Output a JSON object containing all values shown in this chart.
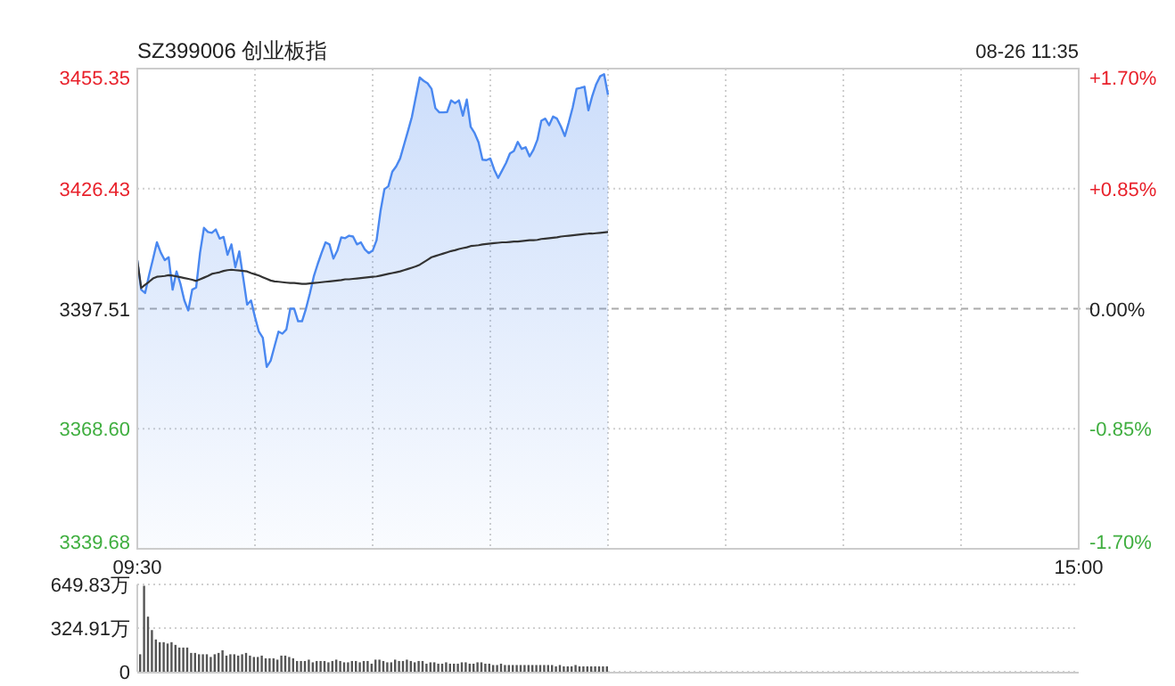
{
  "chart_data": [
    {
      "type": "line",
      "title": "SZ399006 创业板指",
      "subtitle": "08-26 11:35",
      "categories": [
        "09:30",
        null,
        null,
        null,
        null,
        null,
        null,
        null,
        null,
        null,
        null,
        null,
        null,
        null,
        null,
        null,
        null,
        null,
        null,
        null,
        null,
        null,
        null,
        null,
        null,
        null,
        null,
        null,
        null,
        null,
        null,
        null,
        null,
        null,
        null,
        null,
        null,
        null,
        null,
        null,
        null,
        null,
        null,
        null,
        null,
        null,
        null,
        null,
        null,
        null,
        null,
        null,
        null,
        null,
        null,
        null,
        null,
        null,
        null,
        null,
        null,
        null,
        null,
        null,
        null,
        null,
        null,
        null,
        null,
        null,
        null,
        null,
        null,
        null,
        null,
        null,
        null,
        null,
        null,
        null,
        null,
        null,
        null,
        null,
        null,
        null,
        null,
        null,
        null,
        null,
        null,
        null,
        null,
        null,
        null,
        null,
        null,
        null,
        null,
        null,
        null,
        null,
        null,
        null,
        null,
        null,
        null,
        null,
        null,
        null,
        null,
        null,
        null,
        null,
        null,
        null,
        null,
        null,
        null,
        null,
        null,
        null,
        null,
        null,
        null,
        null,
        null,
        null,
        null,
        null,
        null,
        null,
        null,
        null,
        null,
        null,
        null,
        null,
        null,
        null,
        null,
        null,
        null,
        null,
        null,
        null,
        null,
        null,
        null,
        null,
        null,
        null,
        null,
        null,
        null,
        null,
        null,
        null,
        null,
        null,
        null,
        null,
        null,
        null,
        null,
        null,
        null,
        null,
        null,
        null,
        null,
        null,
        null,
        null,
        null,
        null,
        null,
        null,
        null,
        null,
        null,
        null,
        null,
        null,
        null,
        null,
        null,
        null,
        null,
        null,
        null,
        null,
        null,
        null,
        null,
        null,
        null,
        null,
        null,
        null,
        null,
        null,
        null,
        null,
        null,
        null,
        null,
        null,
        null,
        null,
        null,
        null,
        null,
        null,
        null,
        null,
        null,
        null,
        null,
        null,
        null,
        null,
        null,
        null,
        null,
        null,
        null,
        null,
        null,
        null,
        null,
        null,
        null,
        null,
        null,
        null,
        null,
        null,
        null,
        null,
        "15:00"
      ],
      "ylim": [
        3339.68,
        3455.35
      ],
      "yticks": [
        3339.68,
        {
          "value": 3368.6,
          "label": "3368.60"
        },
        3397.51,
        3426.43,
        3455.35
      ],
      "y2lim": [
        -1.7,
        1.7
      ],
      "y2ticks": [
        {
          "value": -1.7,
          "label": "-1.70%"
        },
        {
          "value": -0.85,
          "label": "-0.85%"
        },
        {
          "value": 0,
          "label": "0.00%"
        },
        {
          "value": 0.85,
          "label": "+0.85%"
        },
        {
          "value": 1.7,
          "label": "+1.70%"
        }
      ],
      "grid": true,
      "ref_lines": [
        {
          "axis": "y",
          "value": 3397.51,
          "line_style": "dashed"
        }
      ],
      "series": [
        {
          "type": "area",
          "color": "#4a88f0",
          "values": [
            3409.2,
            3402.1,
            3401.3,
            3405.6,
            3409.5,
            3413.5,
            3411.0,
            3409.2,
            3409.9,
            3402.1,
            3406.5,
            3403.5,
            3399.5,
            3397.1,
            3402.1,
            3402.6,
            3411.0,
            3417.0,
            3416.0,
            3415.8,
            3416.6,
            3414.4,
            3414.8,
            3410.5,
            3413.0,
            3407.5,
            3411.3,
            3405.0,
            3398.5,
            3399.5,
            3395.5,
            3392.0,
            3390.5,
            3383.5,
            3385.0,
            3388.5,
            3392.0,
            3391.5,
            3392.5,
            3397.5,
            3397.5,
            3394.5,
            3394.5,
            3397.5,
            3401.2,
            3405.3,
            3408.3,
            3411.0,
            3413.5,
            3413.0,
            3409.6,
            3411.5,
            3414.7,
            3414.5,
            3415.1,
            3414.9,
            3413.0,
            3413.5,
            3411.8,
            3410.9,
            3411.5,
            3414.0,
            3421.0,
            3426.3,
            3427.0,
            3430.5,
            3431.8,
            3433.7,
            3437.0,
            3440.3,
            3443.7,
            3448.5,
            3453.2,
            3452.4,
            3451.8,
            3450.5,
            3445.8,
            3444.8,
            3444.8,
            3444.9,
            3447.7,
            3447.0,
            3447.7,
            3444.0,
            3447.9,
            3441.3,
            3439.8,
            3437.6,
            3433.4,
            3433.3,
            3433.7,
            3431.0,
            3429.0,
            3430.8,
            3432.6,
            3434.9,
            3435.5,
            3437.7,
            3436.0,
            3436.4,
            3434.2,
            3435.8,
            3438.2,
            3442.8,
            3443.3,
            3441.7,
            3443.8,
            3443.3,
            3441.4,
            3439.1,
            3442.4,
            3446.0,
            3450.5,
            3450.7,
            3451.0,
            3445.3,
            3448.8,
            3451.6,
            3453.5,
            3454.0,
            3449.0,
            null,
            null,
            null,
            null,
            null,
            null,
            null,
            null,
            null,
            null,
            null,
            null,
            null,
            null,
            null,
            null,
            null,
            null,
            null,
            null,
            null,
            null,
            null,
            null,
            null,
            null,
            null,
            null,
            null,
            null,
            null,
            null,
            null,
            null,
            null,
            null,
            null,
            null,
            null,
            null,
            null,
            null,
            null,
            null,
            null,
            null,
            null,
            null,
            null,
            null,
            null,
            null,
            null,
            null,
            null,
            null,
            null,
            null,
            null,
            null,
            null,
            null,
            null,
            null,
            null,
            null,
            null,
            null,
            null,
            null,
            null,
            null,
            null,
            null,
            null,
            null,
            null,
            null,
            null,
            null,
            null,
            null,
            null,
            null,
            null,
            null,
            null,
            null,
            null,
            null,
            null,
            null,
            null,
            null,
            null,
            null,
            null,
            null,
            null,
            null,
            null,
            null,
            null,
            null,
            null,
            null,
            null,
            null,
            null,
            null,
            null,
            null,
            null,
            null,
            null,
            null,
            null,
            null,
            null,
            null
          ]
        },
        {
          "type": "line",
          "color": "#333333",
          "values": [
            3409.2,
            3402.5,
            3403.3,
            3404.0,
            3404.8,
            3405.2,
            3405.3,
            3405.4,
            3405.6,
            3405.5,
            3405.3,
            3405.1,
            3404.9,
            3404.7,
            3404.5,
            3404.2,
            3404.6,
            3405.0,
            3405.4,
            3405.9,
            3406.1,
            3406.3,
            3406.6,
            3406.8,
            3406.9,
            3406.8,
            3406.7,
            3406.6,
            3406.5,
            3406.1,
            3405.8,
            3405.5,
            3405.1,
            3404.7,
            3404.3,
            3404.1,
            3404.0,
            3403.9,
            3403.8,
            3403.7,
            3403.7,
            3403.6,
            3403.5,
            3403.5,
            3403.6,
            3403.7,
            3403.8,
            3403.9,
            3404.0,
            3404.1,
            3404.2,
            3404.3,
            3404.4,
            3404.6,
            3404.6,
            3404.7,
            3404.8,
            3404.9,
            3405.0,
            3405.1,
            3405.2,
            3405.3,
            3405.5,
            3405.7,
            3405.9,
            3406.1,
            3406.3,
            3406.5,
            3406.8,
            3407.1,
            3407.4,
            3407.7,
            3408.1,
            3408.7,
            3409.3,
            3409.9,
            3410.2,
            3410.5,
            3410.8,
            3411.1,
            3411.4,
            3411.6,
            3411.9,
            3412.1,
            3412.3,
            3412.6,
            3412.7,
            3412.8,
            3413.0,
            3413.1,
            3413.2,
            3413.3,
            3413.4,
            3413.5,
            3413.5,
            3413.6,
            3413.7,
            3413.7,
            3413.8,
            3413.9,
            3414.0,
            3414.0,
            3414.1,
            3414.3,
            3414.4,
            3414.5,
            3414.6,
            3414.7,
            3414.9,
            3415.0,
            3415.1,
            3415.2,
            3415.3,
            3415.4,
            3415.5,
            3415.6,
            3415.6,
            3415.7,
            3415.8,
            3415.9,
            3416.0,
            null,
            null,
            null,
            null,
            null,
            null,
            null,
            null,
            null,
            null,
            null,
            null,
            null,
            null,
            null,
            null,
            null,
            null,
            null,
            null,
            null,
            null,
            null,
            null,
            null,
            null,
            null,
            null,
            null,
            null,
            null,
            null,
            null,
            null,
            null,
            null,
            null,
            null,
            null,
            null,
            null,
            null,
            null,
            null,
            null,
            null,
            null,
            null,
            null,
            null,
            null,
            null,
            null,
            null,
            null,
            null,
            null,
            null,
            null,
            null,
            null,
            null,
            null,
            null,
            null,
            null,
            null,
            null,
            null,
            null,
            null,
            null,
            null,
            null,
            null,
            null,
            null,
            null,
            null,
            null,
            null,
            null,
            null,
            null,
            null,
            null,
            null,
            null,
            null,
            null,
            null,
            null,
            null,
            null,
            null,
            null,
            null,
            null,
            null,
            null,
            null,
            null,
            null,
            null,
            null,
            null,
            null,
            null,
            null,
            null,
            null,
            null,
            null,
            null,
            null,
            null,
            null,
            null,
            null,
            null
          ]
        }
      ]
    },
    {
      "type": "bar",
      "ylim": [
        0,
        649.83
      ],
      "yticks": [
        0,
        {
          "value": 324.91,
          "label": "324.91万"
        },
        {
          "value": 649.83,
          "label": "649.83万"
        }
      ],
      "grid": "y",
      "tick_labels": "y",
      "categories": [
        null,
        null,
        null,
        null,
        null,
        null,
        null,
        null,
        null,
        null,
        null,
        null,
        null,
        null,
        null,
        null,
        null,
        null,
        null,
        null,
        null,
        null,
        null,
        null,
        null,
        null,
        null,
        null,
        null,
        null,
        null,
        null,
        null,
        null,
        null,
        null,
        null,
        null,
        null,
        null,
        null,
        null,
        null,
        null,
        null,
        null,
        null,
        null,
        null,
        null,
        null,
        null,
        null,
        null,
        null,
        null,
        null,
        null,
        null,
        null,
        null,
        null,
        null,
        null,
        null,
        null,
        null,
        null,
        null,
        null,
        null,
        null,
        null,
        null,
        null,
        null,
        null,
        null,
        null,
        null,
        null,
        null,
        null,
        null,
        null,
        null,
        null,
        null,
        null,
        null,
        null,
        null,
        null,
        null,
        null,
        null,
        null,
        null,
        null,
        null,
        null,
        null,
        null,
        null,
        null,
        null,
        null,
        null,
        null,
        null,
        null,
        null,
        null,
        null,
        null,
        null,
        null,
        null,
        null,
        null,
        null,
        null,
        null,
        null,
        null,
        null,
        null,
        null,
        null,
        null,
        null,
        null,
        null,
        null,
        null,
        null,
        null,
        null,
        null,
        null,
        null,
        null,
        null,
        null,
        null,
        null,
        null,
        null,
        null,
        null,
        null,
        null,
        null,
        null,
        null,
        null,
        null,
        null,
        null,
        null,
        null,
        null,
        null,
        null,
        null,
        null,
        null,
        null,
        null,
        null,
        null,
        null,
        null,
        null,
        null,
        null,
        null,
        null,
        null,
        null,
        null,
        null,
        null,
        null,
        null,
        null,
        null,
        null,
        null,
        null,
        null,
        null,
        null,
        null,
        null,
        null,
        null,
        null,
        null,
        null,
        null,
        null,
        null,
        null,
        null,
        null,
        null,
        null,
        null,
        null,
        null,
        null,
        null,
        null,
        null,
        null,
        null,
        null,
        null,
        null,
        null,
        null,
        null,
        null,
        null,
        null,
        null,
        null,
        null,
        null,
        null,
        null,
        null,
        null,
        null,
        null,
        null,
        null,
        null,
        null,
        null
      ],
      "series": [
        {
          "color": "#555555",
          "values": [
            130,
            640,
            410,
            310,
            240,
            220,
            220,
            210,
            220,
            200,
            180,
            180,
            180,
            140,
            140,
            130,
            130,
            130,
            110,
            130,
            140,
            160,
            120,
            130,
            130,
            120,
            130,
            140,
            120,
            110,
            110,
            120,
            100,
            100,
            100,
            90,
            120,
            120,
            110,
            100,
            80,
            80,
            80,
            90,
            70,
            80,
            80,
            80,
            70,
            80,
            90,
            80,
            70,
            70,
            80,
            80,
            70,
            80,
            80,
            60,
            90,
            90,
            80,
            70,
            70,
            90,
            80,
            80,
            90,
            80,
            70,
            80,
            80,
            60,
            70,
            70,
            60,
            60,
            70,
            60,
            60,
            60,
            70,
            70,
            60,
            60,
            70,
            70,
            60,
            60,
            50,
            50,
            60,
            50,
            50,
            50,
            50,
            50,
            50,
            50,
            50,
            50,
            50,
            50,
            50,
            50,
            40,
            50,
            40,
            40,
            40,
            50,
            40,
            40,
            40,
            40,
            40,
            40,
            40,
            40,
            null,
            null,
            null,
            null,
            null,
            null,
            null,
            null,
            null,
            null,
            null,
            null,
            null,
            null,
            null,
            null,
            null,
            null,
            null,
            null,
            null,
            null,
            null,
            null,
            null,
            null,
            null,
            null,
            null,
            null,
            null,
            null,
            null,
            null,
            null,
            null,
            null,
            null,
            null,
            null,
            null,
            null,
            null,
            null,
            null,
            null,
            null,
            null,
            null,
            null,
            null,
            null,
            null,
            null,
            null,
            null,
            null,
            null,
            null,
            null,
            null,
            null,
            null,
            null,
            null,
            null,
            null,
            null,
            null,
            null,
            null,
            null,
            null,
            null,
            null,
            null,
            null,
            null,
            null,
            null,
            null,
            null,
            null,
            null,
            null,
            null,
            null,
            null,
            null,
            null,
            null,
            null,
            null,
            null,
            null,
            null,
            null,
            null,
            null,
            null,
            null,
            null,
            null,
            null,
            null,
            null,
            null,
            null,
            null,
            null,
            null,
            null,
            null,
            null,
            null,
            null,
            null,
            null,
            null,
            null,
            null
          ]
        }
      ]
    }
  ]
}
